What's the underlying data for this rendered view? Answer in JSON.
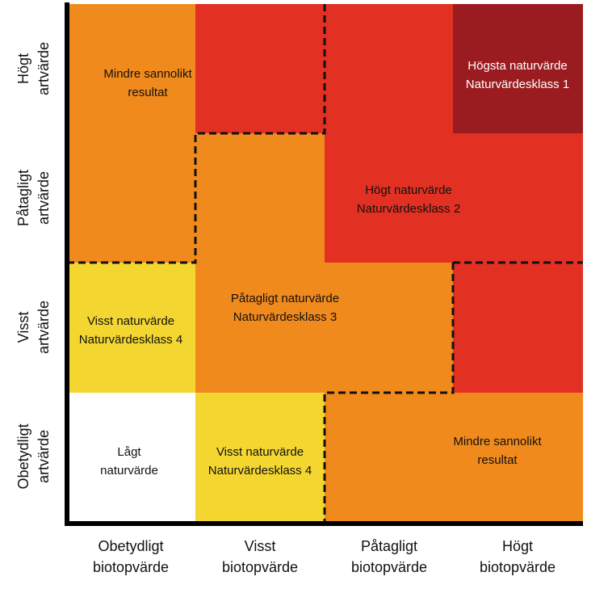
{
  "x_axis": [
    {
      "lines": [
        "Obetydligt",
        "biotopvärde"
      ]
    },
    {
      "lines": [
        "Visst",
        "biotopvärde"
      ]
    },
    {
      "lines": [
        "Påtagligt",
        "biotopvärde"
      ]
    },
    {
      "lines": [
        "Högt",
        "biotopvärde"
      ]
    }
  ],
  "y_axis": [
    {
      "lines": [
        "Högt",
        "artvärde"
      ]
    },
    {
      "lines": [
        "Påtagligt",
        "artvärde"
      ]
    },
    {
      "lines": [
        "Visst",
        "artvärde"
      ]
    },
    {
      "lines": [
        "Obetydligt",
        "artvärde"
      ]
    }
  ],
  "labels": [
    {
      "lines": [
        "Mindre sannolikt",
        "resultat"
      ]
    },
    {
      "lines": [
        "Högsta naturvärde",
        "Naturvärdesklass 1"
      ]
    },
    {
      "lines": [
        "Högt  naturvärde",
        "Naturvärdesklass 2"
      ]
    },
    {
      "lines": [
        "Påtagligt naturvärde",
        "Naturvärdesklass 3"
      ]
    },
    {
      "lines": [
        "Visst naturvärde",
        "Naturvärdesklass 4"
      ]
    },
    {
      "lines": [
        "Lågt",
        "naturvärde"
      ]
    },
    {
      "lines": [
        "Visst naturvärde",
        "Naturvärdesklass 4"
      ]
    },
    {
      "lines": [
        "Mindre sannolikt",
        "resultat"
      ]
    }
  ]
}
